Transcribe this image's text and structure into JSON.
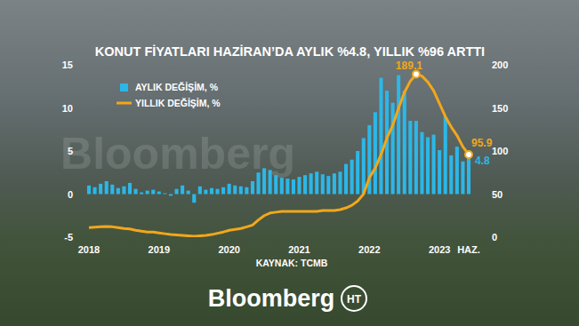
{
  "chart_data": {
    "type": "bar",
    "title": "KONUT FİYATLARI HAZİRAN’DA AYLIK %4.8, YILLIK %96 ARTTI",
    "source": "KAYNAK: TCMB",
    "brand": "Bloomberg",
    "logo": "HT",
    "categories": [
      "2018",
      null,
      null,
      null,
      null,
      null,
      null,
      null,
      null,
      null,
      null,
      null,
      "2019",
      null,
      null,
      null,
      null,
      null,
      null,
      null,
      null,
      null,
      null,
      null,
      "2020",
      null,
      null,
      null,
      null,
      null,
      null,
      null,
      null,
      null,
      null,
      null,
      "2021",
      null,
      null,
      null,
      null,
      null,
      null,
      null,
      null,
      null,
      null,
      null,
      "2022",
      null,
      null,
      null,
      null,
      null,
      null,
      null,
      null,
      null,
      null,
      null,
      "2023",
      null,
      null,
      null,
      null,
      "HAZ."
    ],
    "series": [
      {
        "name": "AYLIK DEĞİŞİM, %",
        "type": "bar",
        "color": "#2cb7e8",
        "values": [
          1.0,
          0.8,
          1.2,
          1.5,
          1.1,
          0.7,
          0.9,
          1.3,
          0.6,
          0.2,
          0.4,
          0.5,
          0.3,
          0.1,
          -0.2,
          0.6,
          1.0,
          0.4,
          -1.0,
          0.9,
          0.5,
          0.7,
          0.6,
          0.8,
          1.2,
          1.0,
          0.9,
          0.8,
          1.5,
          2.5,
          3.0,
          2.8,
          2.2,
          1.9,
          1.8,
          1.7,
          2.0,
          2.2,
          2.4,
          2.6,
          2.3,
          2.1,
          2.4,
          2.6,
          3.5,
          4.0,
          5.0,
          6.5,
          8.0,
          9.5,
          13.5,
          12.0,
          10.6,
          13.8,
          12.0,
          8.5,
          8.5,
          7.2,
          6.6,
          6.9,
          5.1,
          9.0,
          4.5,
          5.5,
          3.8,
          4.8
        ]
      },
      {
        "name": "YILLIK DEĞİŞİM, %",
        "type": "line",
        "color": "#f2a71b",
        "axis": "y2",
        "values": [
          11,
          11.5,
          12,
          12.5,
          12,
          11,
          10,
          9.5,
          8,
          7,
          6,
          6,
          5,
          4,
          3,
          2.5,
          2,
          1.5,
          1,
          1.5,
          2,
          3,
          4.5,
          6,
          8,
          9,
          10,
          12,
          14,
          20,
          25,
          28,
          29,
          30,
          30,
          30,
          30,
          30,
          30,
          30,
          31,
          31,
          31,
          32,
          34,
          37,
          42,
          50,
          69,
          80,
          96,
          115,
          130,
          150,
          168,
          181,
          189.1,
          187,
          180,
          170,
          155,
          140,
          128,
          118,
          105,
          95.9
        ]
      }
    ],
    "annotations": [
      {
        "text": "189.1",
        "series": 1,
        "index": 56
      },
      {
        "text": "95.9",
        "series": 1,
        "index": 65
      },
      {
        "text": "4.8",
        "series": 0,
        "index": 65
      }
    ],
    "ylim": [
      -5,
      15
    ],
    "yticks": [
      -5,
      0,
      5,
      10,
      15
    ],
    "y2lim": [
      0,
      200
    ],
    "y2ticks": [
      0,
      50,
      100,
      150,
      200
    ],
    "grid": false,
    "legend": "top-left"
  }
}
